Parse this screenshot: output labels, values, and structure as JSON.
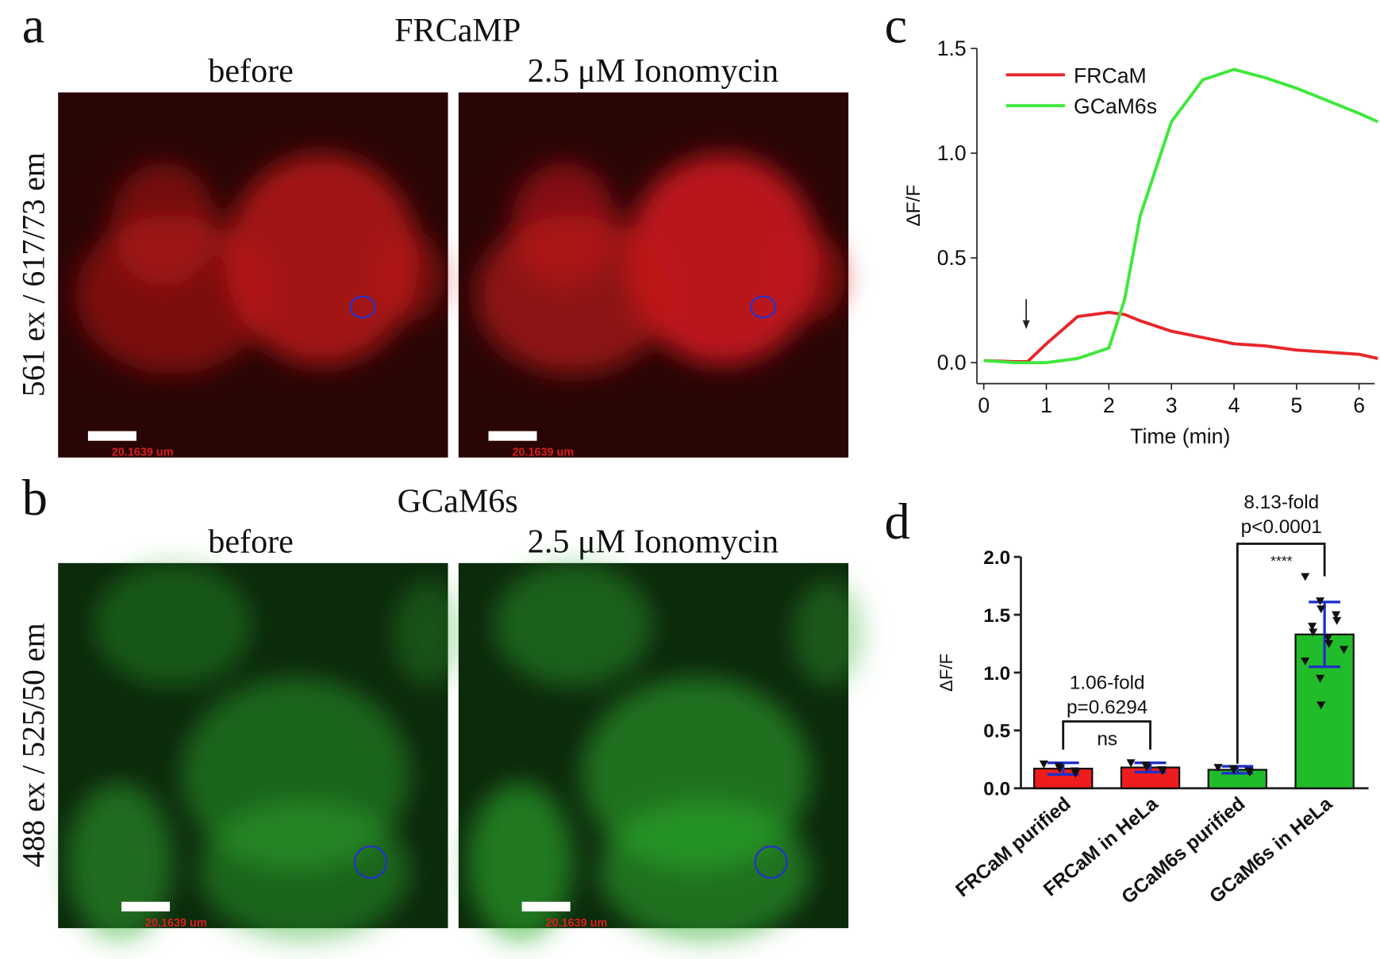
{
  "panel_labels": [
    "a",
    "b",
    "c",
    "d"
  ],
  "images": [
    {
      "title": "FRCaMP",
      "ylabel": "561 ex / 617/73 em",
      "columns": [
        "before",
        "2.5 μM Ionomycin"
      ],
      "scale_bar": "20.1639 um"
    },
    {
      "title": "GCaM6s",
      "ylabel": "488 ex / 525/50 em",
      "columns": [
        "before",
        "2.5 μM Ionomycin"
      ],
      "scale_bar": "20.1639 um"
    }
  ],
  "chart_data": [
    {
      "type": "line",
      "xlabel": "Time (min)",
      "ylabel": "ΔF/F",
      "legend": "upper left",
      "x": [
        0,
        0.5,
        0.7,
        1,
        1.5,
        2,
        2.25,
        2.5,
        3,
        3.5,
        4,
        4.5,
        5,
        5.5,
        6,
        6.3
      ],
      "xlim": [
        -0.11,
        6.25
      ],
      "xticks": [
        0,
        1,
        2,
        3,
        4,
        5,
        6
      ],
      "ylim": [
        -0.1,
        1.5
      ],
      "yticks": [
        {
          "value": 0,
          "label": "0.0"
        },
        {
          "value": 0.5,
          "label": "0.5"
        },
        {
          "value": 1,
          "label": "1.0"
        },
        {
          "value": 1.5,
          "label": "1.5"
        }
      ],
      "series": [
        {
          "name": "FRCaM",
          "color": "#e8262a",
          "values": [
            0.01,
            0.005,
            0.005,
            0.09,
            0.22,
            0.24,
            0.23,
            0.2,
            0.15,
            0.12,
            0.09,
            0.08,
            0.06,
            0.05,
            0.04,
            0.02
          ]
        },
        {
          "name": "GCaM6s",
          "color": "#3ee83a",
          "values": [
            0.01,
            0.0,
            0.0,
            0.0,
            0.02,
            0.07,
            0.3,
            0.7,
            1.15,
            1.35,
            1.4,
            1.36,
            1.31,
            1.25,
            1.19,
            1.15
          ]
        }
      ]
    },
    {
      "type": "bar",
      "ylabel": "ΔF/F",
      "categories": [
        "FRCaM purified",
        "FRCaM in HeLa",
        "GCaM6s purified",
        "GCaM6s in HeLa"
      ],
      "values": [
        0.17,
        0.18,
        0.16,
        1.33
      ],
      "errors": [
        0.05,
        0.04,
        0.03,
        0.28
      ],
      "colors": [
        "#ee1c1c",
        "#ee1c1c",
        "#22bb2a",
        "#22bb2a"
      ],
      "points": [
        [
          0.21,
          0.19,
          0.17,
          0.15,
          0.13
        ],
        [
          0.22,
          0.2,
          0.18,
          0.16,
          0.15
        ],
        [
          0.18,
          0.17,
          0.16,
          0.15,
          0.14
        ],
        [
          1.83,
          1.62,
          1.55,
          1.5,
          1.45,
          1.4,
          1.35,
          1.3,
          1.25,
          1.2,
          1.1,
          0.95,
          0.72
        ]
      ],
      "ylim": [
        0,
        2.0
      ],
      "yticks": [
        {
          "value": 0,
          "label": "0.0"
        },
        {
          "value": 0.5,
          "label": "0.5"
        },
        {
          "value": 1,
          "label": "1.0"
        },
        {
          "value": 1.5,
          "label": "1.5"
        },
        {
          "value": 2,
          "label": "2.0"
        }
      ],
      "annotations": [
        "1.06-fold",
        "p=0.6294",
        "ns",
        "8.13-fold",
        "p<0.0001",
        "****"
      ]
    }
  ]
}
